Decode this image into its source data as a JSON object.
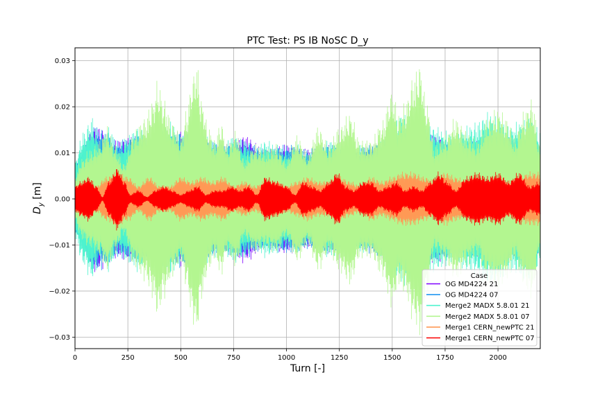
{
  "chart_data": {
    "type": "line",
    "title": "PTC Test: PS IB NoSC D_y",
    "xlabel": "Turn [-]",
    "ylabel_main": "D",
    "ylabel_sub": "y",
    "ylabel_unit": " [m]",
    "xlim": [
      0,
      2200
    ],
    "ylim": [
      -0.0325,
      0.0328
    ],
    "grid": true,
    "legend_placement": "lower-right",
    "legend_title": "Case",
    "x_ticks": [
      0,
      250,
      500,
      750,
      1000,
      1250,
      1500,
      1750,
      2000
    ],
    "x_tick_labels": [
      "0",
      "250",
      "500",
      "750",
      "1000",
      "1250",
      "1500",
      "1750",
      "2000"
    ],
    "y_ticks": [
      0.03,
      0.02,
      0.01,
      0.0,
      -0.01,
      -0.02,
      -0.03
    ],
    "y_tick_labels": [
      "0.03",
      "0.02",
      "0.01",
      "0.00",
      "−0.01",
      "−0.02",
      "−0.03"
    ],
    "series": [
      {
        "name": "OG MD4224 21",
        "color": "#7f00ff",
        "envelope": {
          "x": [
            0,
            100,
            200,
            300,
            400,
            500,
            600,
            700,
            800,
            900,
            1000,
            1100,
            1200,
            1300,
            1400,
            1500,
            1600,
            1700,
            1800,
            1900,
            2000,
            2100,
            2200
          ],
          "amp": [
            0.008,
            0.016,
            0.013,
            0.014,
            0.012,
            0.015,
            0.013,
            0.012,
            0.014,
            0.011,
            0.012,
            0.011,
            0.012,
            0.01,
            0.012,
            0.014,
            0.015,
            0.014,
            0.012,
            0.013,
            0.014,
            0.013,
            0.012
          ]
        }
      },
      {
        "name": "OG MD4224 07",
        "color": "#1f96f0",
        "envelope": {
          "x": [
            0,
            100,
            200,
            300,
            400,
            500,
            600,
            700,
            800,
            900,
            1000,
            1100,
            1200,
            1300,
            1400,
            1500,
            1600,
            1700,
            1800,
            1900,
            2000,
            2100,
            2200
          ],
          "amp": [
            0.008,
            0.016,
            0.013,
            0.014,
            0.012,
            0.015,
            0.013,
            0.012,
            0.013,
            0.011,
            0.012,
            0.011,
            0.012,
            0.01,
            0.012,
            0.014,
            0.015,
            0.014,
            0.012,
            0.013,
            0.014,
            0.013,
            0.012
          ]
        }
      },
      {
        "name": "Merge2 MADX 5.8.01 21",
        "color": "#4df3ce",
        "envelope": {
          "x": [
            0,
            40,
            80,
            120,
            160,
            200,
            250,
            300,
            350,
            400,
            450,
            500,
            550,
            600,
            650,
            700,
            750,
            800,
            850,
            900,
            950,
            1000,
            1050,
            1100,
            1150,
            1200,
            1250,
            1300,
            1350,
            1400,
            1450,
            1500,
            1550,
            1600,
            1650,
            1700,
            1750,
            1800,
            1850,
            1900,
            1950,
            2000,
            2050,
            2100,
            2150,
            2200
          ],
          "amp": [
            0.009,
            0.015,
            0.018,
            0.013,
            0.016,
            0.012,
            0.014,
            0.016,
            0.013,
            0.015,
            0.017,
            0.014,
            0.016,
            0.015,
            0.013,
            0.012,
            0.014,
            0.013,
            0.011,
            0.013,
            0.012,
            0.011,
            0.012,
            0.01,
            0.011,
            0.013,
            0.012,
            0.011,
            0.012,
            0.011,
            0.013,
            0.016,
            0.019,
            0.018,
            0.017,
            0.016,
            0.015,
            0.014,
            0.016,
            0.017,
            0.019,
            0.018,
            0.016,
            0.017,
            0.018,
            0.015
          ]
        }
      },
      {
        "name": "Merge2 MADX 5.8.01 07",
        "color": "#b3f690",
        "envelope": {
          "x": [
            0,
            30,
            70,
            120,
            150,
            190,
            230,
            280,
            330,
            370,
            390,
            420,
            460,
            500,
            530,
            555,
            575,
            600,
            630,
            660,
            690,
            720,
            760,
            800,
            850,
            900,
            950,
            1000,
            1050,
            1100,
            1150,
            1200,
            1250,
            1300,
            1350,
            1400,
            1450,
            1500,
            1530,
            1560,
            1600,
            1630,
            1660,
            1700,
            1750,
            1800,
            1850,
            1900,
            1950,
            2000,
            2040,
            2080,
            2120,
            2160,
            2200
          ],
          "amp": [
            0.005,
            0.009,
            0.011,
            0.013,
            0.016,
            0.012,
            0.008,
            0.015,
            0.018,
            0.022,
            0.026,
            0.022,
            0.017,
            0.014,
            0.02,
            0.027,
            0.03,
            0.022,
            0.016,
            0.013,
            0.017,
            0.012,
            0.015,
            0.009,
            0.012,
            0.011,
            0.012,
            0.009,
            0.014,
            0.01,
            0.016,
            0.012,
            0.016,
            0.019,
            0.013,
            0.013,
            0.017,
            0.024,
            0.019,
            0.021,
            0.027,
            0.03,
            0.022,
            0.012,
            0.014,
            0.018,
            0.015,
            0.013,
            0.018,
            0.02,
            0.018,
            0.014,
            0.019,
            0.022,
            0.012
          ]
        }
      },
      {
        "name": "Merge1 CERN_newPTC 21",
        "color": "#ff9955",
        "envelope": {
          "x": [
            0,
            50,
            100,
            150,
            200,
            250,
            300,
            350,
            400,
            450,
            500,
            550,
            600,
            650,
            700,
            750,
            800,
            850,
            900,
            950,
            1000,
            1050,
            1100,
            1150,
            1200,
            1250,
            1300,
            1350,
            1400,
            1450,
            1500,
            1550,
            1600,
            1650,
            1700,
            1750,
            1800,
            1850,
            1900,
            1950,
            2000,
            2050,
            2100,
            2150,
            2200
          ],
          "amp": [
            0.003,
            0.004,
            0.003,
            0.005,
            0.006,
            0.005,
            0.003,
            0.005,
            0.003,
            0.003,
            0.005,
            0.004,
            0.005,
            0.004,
            0.005,
            0.003,
            0.004,
            0.003,
            0.004,
            0.004,
            0.003,
            0.004,
            0.005,
            0.004,
            0.004,
            0.005,
            0.004,
            0.003,
            0.005,
            0.004,
            0.005,
            0.006,
            0.006,
            0.005,
            0.004,
            0.006,
            0.005,
            0.004,
            0.005,
            0.004,
            0.005,
            0.004,
            0.005,
            0.006,
            0.006
          ]
        }
      },
      {
        "name": "Merge1 CERN_newPTC 07",
        "color": "#ff0000",
        "envelope": {
          "x": [
            0,
            30,
            65,
            100,
            130,
            160,
            200,
            235,
            260,
            300,
            340,
            380,
            420,
            460,
            500,
            540,
            580,
            620,
            660,
            700,
            740,
            780,
            820,
            860,
            900,
            950,
            1000,
            1040,
            1080,
            1120,
            1160,
            1200,
            1240,
            1280,
            1320,
            1360,
            1400,
            1440,
            1480,
            1520,
            1560,
            1600,
            1640,
            1680,
            1720,
            1760,
            1800,
            1850,
            1900,
            1950,
            2000,
            2050,
            2100,
            2150,
            2200
          ],
          "amp": [
            0.003,
            0.004,
            0.005,
            0.003,
            0.0005,
            0.004,
            0.007,
            0.004,
            0.001,
            0.002,
            0.0005,
            0.002,
            0.003,
            0.002,
            0.001,
            0.002,
            0.003,
            0.001,
            0.002,
            0.002,
            0.003,
            0.002,
            0.003,
            0.001,
            0.005,
            0.004,
            0.003,
            0.001,
            0.004,
            0.003,
            0.002,
            0.004,
            0.006,
            0.003,
            0.002,
            0.004,
            0.004,
            0.002,
            0.003,
            0.004,
            0.002,
            0.003,
            0.002,
            0.004,
            0.006,
            0.004,
            0.002,
            0.005,
            0.006,
            0.005,
            0.006,
            0.004,
            0.006,
            0.003,
            0.004
          ]
        }
      }
    ]
  }
}
